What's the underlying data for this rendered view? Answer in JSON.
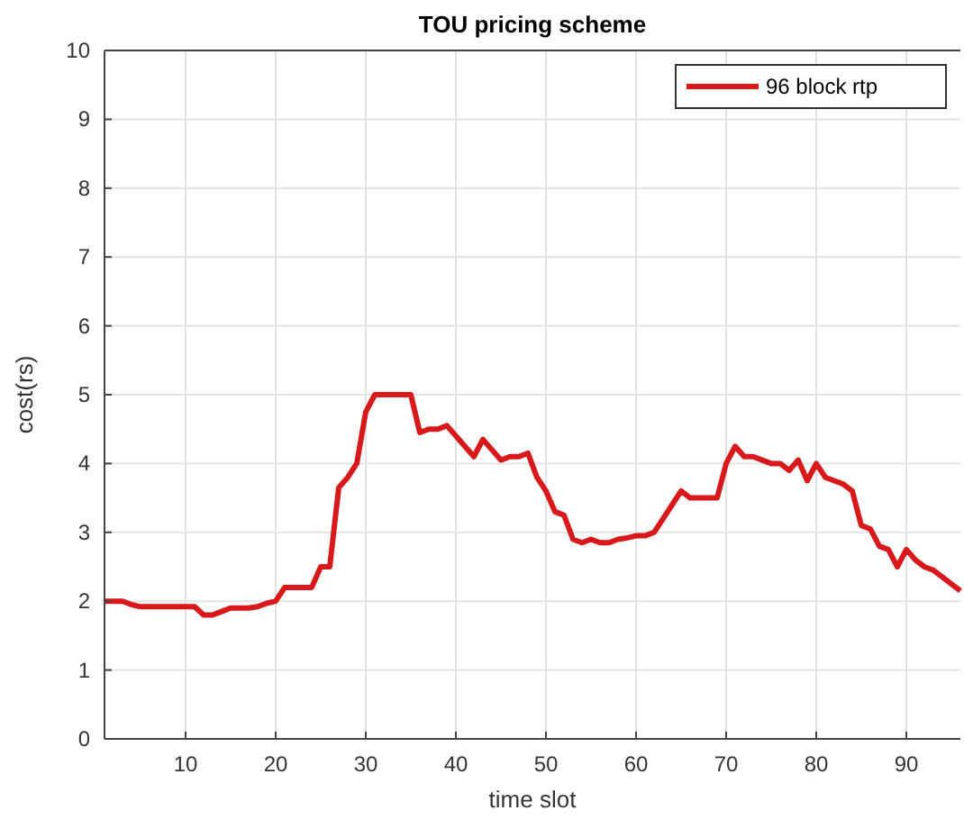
{
  "chart_data": {
    "type": "line",
    "title": "TOU pricing scheme",
    "xlabel": "time slot",
    "ylabel": "cost(rs)",
    "x": [
      1,
      2,
      3,
      4,
      5,
      6,
      7,
      8,
      9,
      10,
      11,
      12,
      13,
      14,
      15,
      16,
      17,
      18,
      19,
      20,
      21,
      22,
      23,
      24,
      25,
      26,
      27,
      28,
      29,
      30,
      31,
      32,
      33,
      34,
      35,
      36,
      37,
      38,
      39,
      40,
      41,
      42,
      43,
      44,
      45,
      46,
      47,
      48,
      49,
      50,
      51,
      52,
      53,
      54,
      55,
      56,
      57,
      58,
      59,
      60,
      61,
      62,
      63,
      64,
      65,
      66,
      67,
      68,
      69,
      70,
      71,
      72,
      73,
      74,
      75,
      76,
      77,
      78,
      79,
      80,
      81,
      82,
      83,
      84,
      85,
      86,
      87,
      88,
      89,
      90,
      91,
      92,
      93,
      94,
      95,
      96
    ],
    "series": [
      {
        "name": "96 block rtp",
        "color": "#d7191c",
        "values": [
          2.0,
          2.0,
          2.0,
          1.95,
          1.92,
          1.92,
          1.92,
          1.92,
          1.92,
          1.92,
          1.92,
          1.8,
          1.8,
          1.85,
          1.9,
          1.9,
          1.9,
          1.92,
          1.97,
          2.0,
          2.2,
          2.2,
          2.2,
          2.2,
          2.5,
          2.5,
          3.65,
          3.8,
          4.0,
          4.75,
          5.0,
          5.0,
          5.0,
          5.0,
          5.0,
          4.45,
          4.5,
          4.5,
          4.55,
          4.4,
          4.25,
          4.1,
          4.35,
          4.2,
          4.05,
          4.1,
          4.1,
          4.15,
          3.8,
          3.6,
          3.3,
          3.25,
          2.9,
          2.85,
          2.9,
          2.85,
          2.85,
          2.9,
          2.92,
          2.95,
          2.95,
          3.0,
          3.2,
          3.4,
          3.6,
          3.5,
          3.5,
          3.5,
          3.5,
          4.0,
          4.25,
          4.1,
          4.1,
          4.05,
          4.0,
          4.0,
          3.9,
          4.05,
          3.75,
          4.0,
          3.8,
          3.75,
          3.7,
          3.6,
          3.1,
          3.05,
          2.8,
          2.75,
          2.5,
          2.75,
          2.6,
          2.5,
          2.45,
          2.35,
          2.25,
          2.15
        ]
      }
    ],
    "xlim": [
      1,
      96
    ],
    "xticks": [
      10,
      20,
      30,
      40,
      50,
      60,
      70,
      80,
      90
    ],
    "ylim": [
      0,
      10
    ],
    "yticks": [
      0,
      1,
      2,
      3,
      4,
      5,
      6,
      7,
      8,
      9,
      10
    ],
    "grid": true,
    "legend": "top right",
    "marker": "none",
    "line_style": "solid"
  }
}
